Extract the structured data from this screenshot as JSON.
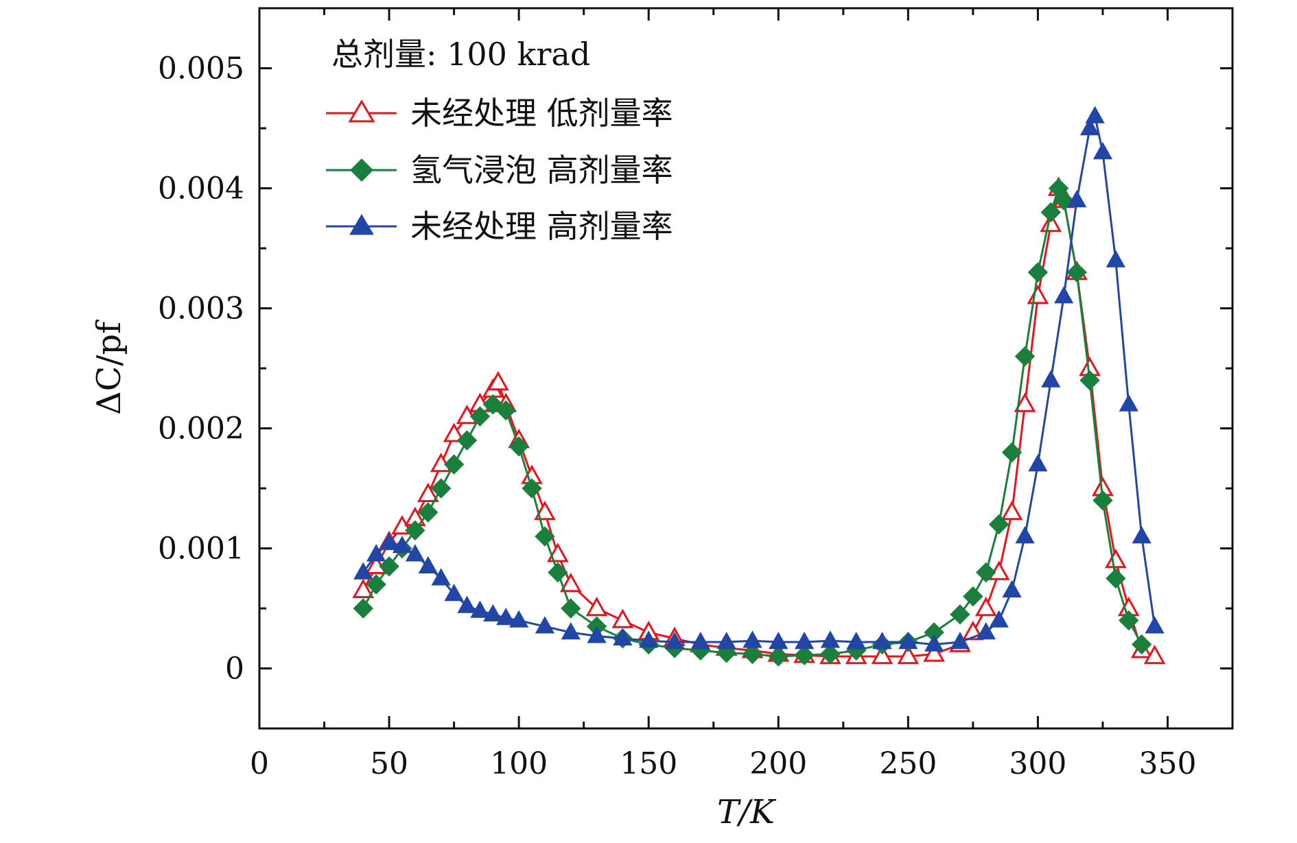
{
  "chart_data": {
    "type": "scatter",
    "title": "",
    "xlabel": "T/K",
    "ylabel": "ΔC/pf",
    "xlim": [
      0,
      375
    ],
    "ylim": [
      -0.0005,
      0.0055
    ],
    "x_ticks": [
      0,
      50,
      100,
      150,
      200,
      250,
      300,
      350
    ],
    "x_tick_labels": [
      "0",
      "50",
      "100",
      "150",
      "200",
      "250",
      "300",
      "350"
    ],
    "y_ticks": [
      0,
      0.001,
      0.002,
      0.003,
      0.004,
      0.005
    ],
    "y_tick_labels": [
      "0",
      "0.001",
      "0.002",
      "0.003",
      "0.004",
      "0.005"
    ],
    "grid": false,
    "legend_title": "总剂量: 100 krad",
    "legend_position": "top-left",
    "series": [
      {
        "name": "未经处理 低剂量率",
        "color": "#e8141b",
        "marker": "triangle-open",
        "x": [
          40,
          45,
          50,
          55,
          60,
          65,
          70,
          75,
          80,
          85,
          90,
          92,
          95,
          100,
          105,
          110,
          115,
          120,
          130,
          140,
          150,
          160,
          170,
          180,
          190,
          200,
          210,
          220,
          230,
          240,
          250,
          260,
          270,
          275,
          280,
          285,
          290,
          295,
          300,
          305,
          308,
          310,
          315,
          320,
          325,
          330,
          335,
          340,
          345
        ],
        "y": [
          0.00065,
          0.00085,
          0.00105,
          0.00118,
          0.00125,
          0.00145,
          0.0017,
          0.00195,
          0.0021,
          0.0022,
          0.00232,
          0.00238,
          0.0022,
          0.0019,
          0.0016,
          0.0013,
          0.00095,
          0.0007,
          0.0005,
          0.0004,
          0.0003,
          0.00025,
          0.0002,
          0.00017,
          0.00015,
          0.00012,
          0.00011,
          0.0001,
          0.0001,
          0.0001,
          0.0001,
          0.00012,
          0.0002,
          0.0003,
          0.0005,
          0.0008,
          0.0013,
          0.0022,
          0.0031,
          0.0037,
          0.004,
          0.0039,
          0.0033,
          0.0025,
          0.0015,
          0.0009,
          0.0005,
          0.00015,
          0.0001
        ]
      },
      {
        "name": "氢气浸泡 高剂量率",
        "color": "#1a7f3c",
        "marker": "diamond-filled",
        "x": [
          40,
          45,
          50,
          55,
          60,
          65,
          70,
          75,
          80,
          85,
          90,
          95,
          100,
          105,
          110,
          115,
          120,
          130,
          140,
          150,
          160,
          170,
          180,
          190,
          200,
          210,
          220,
          230,
          240,
          250,
          260,
          270,
          275,
          280,
          285,
          290,
          295,
          300,
          305,
          308,
          310,
          315,
          320,
          325,
          330,
          335,
          340
        ],
        "y": [
          0.0005,
          0.0007,
          0.00085,
          0.001,
          0.00115,
          0.0013,
          0.0015,
          0.0017,
          0.0019,
          0.0021,
          0.0022,
          0.00215,
          0.00185,
          0.0015,
          0.0011,
          0.0008,
          0.0005,
          0.00035,
          0.00025,
          0.0002,
          0.00017,
          0.00015,
          0.00013,
          0.00012,
          0.0001,
          0.00011,
          0.00012,
          0.00015,
          0.0002,
          0.00022,
          0.0003,
          0.00045,
          0.0006,
          0.0008,
          0.0012,
          0.0018,
          0.0026,
          0.0033,
          0.0038,
          0.004,
          0.0039,
          0.0033,
          0.0024,
          0.0014,
          0.00075,
          0.0004,
          0.0002
        ]
      },
      {
        "name": "未经处理 高剂量率",
        "color": "#2146a6",
        "marker": "triangle-filled",
        "x": [
          40,
          45,
          50,
          55,
          60,
          65,
          70,
          75,
          80,
          85,
          90,
          95,
          100,
          110,
          120,
          130,
          140,
          150,
          160,
          170,
          180,
          190,
          200,
          210,
          220,
          230,
          240,
          250,
          260,
          270,
          280,
          285,
          290,
          295,
          300,
          305,
          310,
          315,
          320,
          322,
          325,
          330,
          335,
          340,
          345
        ],
        "y": [
          0.0008,
          0.00095,
          0.00105,
          0.00102,
          0.00095,
          0.00085,
          0.00075,
          0.00062,
          0.00052,
          0.00048,
          0.00045,
          0.00042,
          0.0004,
          0.00035,
          0.0003,
          0.00027,
          0.00025,
          0.00023,
          0.00022,
          0.00022,
          0.00022,
          0.00023,
          0.00022,
          0.00022,
          0.00023,
          0.00022,
          0.00022,
          0.00022,
          0.0002,
          0.00022,
          0.0003,
          0.0004,
          0.00065,
          0.0011,
          0.0017,
          0.0024,
          0.0031,
          0.0039,
          0.0045,
          0.0046,
          0.0043,
          0.0034,
          0.0022,
          0.0011,
          0.00035
        ]
      }
    ]
  }
}
